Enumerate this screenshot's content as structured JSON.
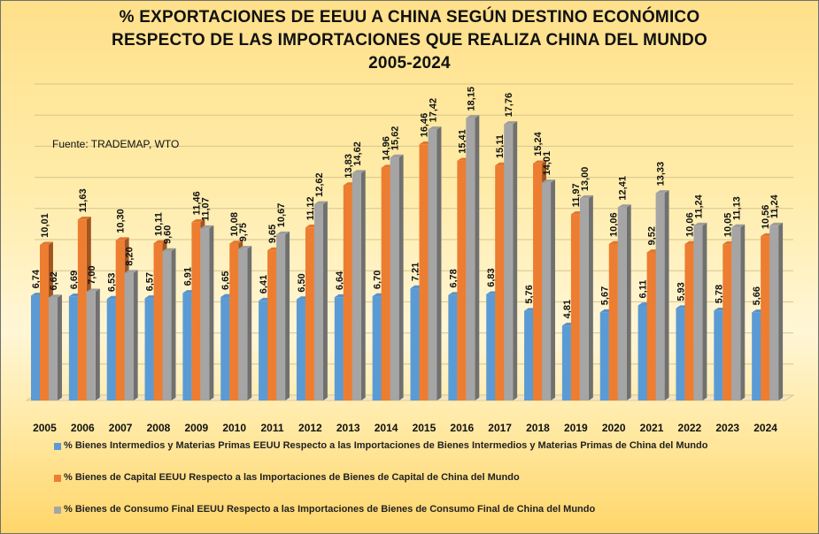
{
  "chart_data": {
    "type": "bar",
    "title_lines": [
      "% EXPORTACIONES DE EEUU A CHINA SEGÚN DESTINO ECONÓMICO",
      "RESPECTO DE LAS IMPORTACIONES QUE REALIZA CHINA DEL MUNDO",
      "2005-2024"
    ],
    "source": "Fuente: TRADEMAP, WTO",
    "categories": [
      "2005",
      "2006",
      "2007",
      "2008",
      "2009",
      "2010",
      "2011",
      "2012",
      "2013",
      "2014",
      "2015",
      "2016",
      "2017",
      "2018",
      "2019",
      "2020",
      "2021",
      "2022",
      "2023",
      "2024"
    ],
    "ylim": [
      0,
      20
    ],
    "grid": true,
    "series": [
      {
        "name": "% Bienes Intermedios y Materias Primas EEUU Respecto a las Importaciones de Bienes Intermedios y Materias Primas de China del Mundo",
        "color": "#5b9bd5",
        "values": [
          6.74,
          6.69,
          6.53,
          6.57,
          6.91,
          6.65,
          6.41,
          6.5,
          6.64,
          6.7,
          7.21,
          6.78,
          6.83,
          5.76,
          4.81,
          5.67,
          6.11,
          5.93,
          5.78,
          5.66
        ],
        "labels": [
          "6,74",
          "6,69",
          "6,53",
          "6,57",
          "6,91",
          "6,65",
          "6,41",
          "6,50",
          "6,64",
          "6,70",
          "7,21",
          "6,78",
          "6,83",
          "5,76",
          "4,81",
          "5,67",
          "6,11",
          "5,93",
          "5,78",
          "5,66"
        ]
      },
      {
        "name": "% Bienes de Capital EEUU Respecto a las Importaciones de Bienes de Capital de China del Mundo",
        "color": "#ed7d31",
        "values": [
          10.01,
          11.63,
          10.3,
          10.11,
          11.46,
          10.08,
          9.65,
          11.12,
          13.83,
          14.96,
          16.46,
          15.41,
          15.11,
          15.24,
          11.97,
          10.06,
          9.52,
          10.06,
          10.05,
          10.56
        ],
        "labels": [
          "10,01",
          "11,63",
          "10,30",
          "10,11",
          "11,46",
          "10,08",
          "9,65",
          "11,12",
          "13,83",
          "14,96",
          "16,46",
          "15,41",
          "15,11",
          "15,24",
          "11,97",
          "10,06",
          "9,52",
          "10,06",
          "10,05",
          "10,56"
        ]
      },
      {
        "name": "% Bienes de Consumo Final EEUU Respecto a las Importaciones de Bienes de Consumo Final de China del Mundo",
        "color": "#a5a5a5",
        "values": [
          6.62,
          7.0,
          8.2,
          9.6,
          11.07,
          9.75,
          10.67,
          12.62,
          14.62,
          15.62,
          17.42,
          18.15,
          17.76,
          14.01,
          13.0,
          12.41,
          13.33,
          11.24,
          11.13,
          11.24
        ],
        "labels": [
          "6,62",
          "7,00",
          "8,20",
          "9,60",
          "11,07",
          "9,75",
          "10,67",
          "12,62",
          "14,62",
          "15,62",
          "17,42",
          "18,15",
          "17,76",
          "14,01",
          "13,00",
          "12,41",
          "13,33",
          "11,24",
          "11,13",
          "11,24"
        ]
      }
    ]
  }
}
